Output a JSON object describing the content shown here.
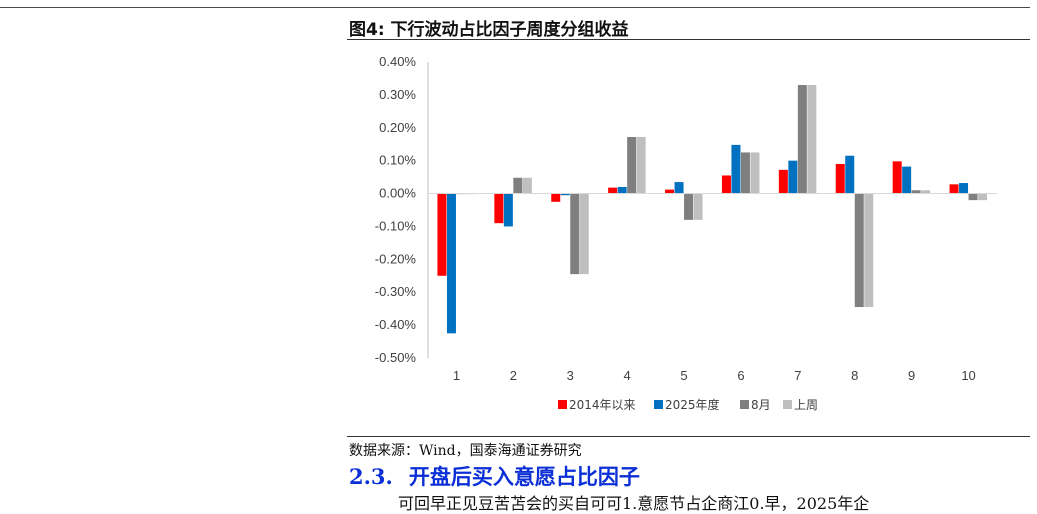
{
  "figure": {
    "title": "图4:  下行波动占比因子周度分组收益",
    "source": "数据来源：Wind，国泰海通证券研究"
  },
  "section": {
    "number": "2.3.",
    "title": "开盘后买入意愿占比因子"
  },
  "body_text_fragment": "可回早正见豆苦苫会的买自可可1.意愿节占企商江0.早，2025年企",
  "colors": {
    "series_2014": "#ff0000",
    "series_2025": "#0070c0",
    "series_aug": "#7f7f7f",
    "series_lastweek": "#bfbfbf",
    "section_blue": "#0b2fd6"
  },
  "chart_data": {
    "type": "bar",
    "categories": [
      "1",
      "2",
      "3",
      "4",
      "5",
      "6",
      "7",
      "8",
      "9",
      "10"
    ],
    "series": [
      {
        "name": "2014年以来",
        "color": "#ff0000",
        "values": [
          -0.25,
          -0.09,
          -0.025,
          0.018,
          0.012,
          0.055,
          0.072,
          0.09,
          0.098,
          0.028
        ]
      },
      {
        "name": "2025年度",
        "color": "#0070c0",
        "values": [
          -0.425,
          -0.1,
          -0.005,
          0.02,
          0.035,
          0.148,
          0.1,
          0.115,
          0.082,
          0.032
        ]
      },
      {
        "name": "8月",
        "color": "#7f7f7f",
        "values": [
          0.0,
          0.048,
          -0.245,
          0.172,
          -0.08,
          0.125,
          0.33,
          -0.345,
          0.01,
          -0.02
        ]
      },
      {
        "name": "上周",
        "color": "#bfbfbf",
        "values": [
          0.0,
          0.048,
          -0.245,
          0.172,
          -0.08,
          0.125,
          0.33,
          -0.345,
          0.01,
          -0.02
        ]
      }
    ],
    "yticks": [
      "0.40%",
      "0.30%",
      "0.20%",
      "0.10%",
      "0.00%",
      "-0.10%",
      "-0.20%",
      "-0.30%",
      "-0.40%",
      "-0.50%"
    ],
    "ylim": [
      -0.5,
      0.4
    ],
    "y_unit": "%",
    "legend_position": "bottom",
    "grid": false
  }
}
